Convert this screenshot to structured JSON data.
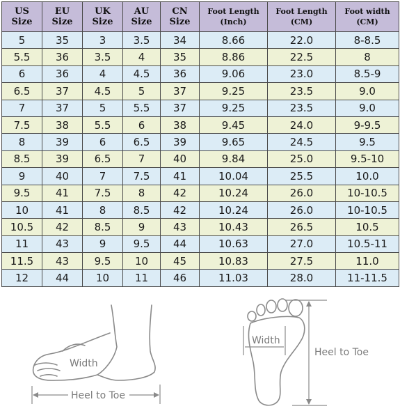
{
  "headers": [
    {
      "line1": "US",
      "line2": "Size"
    },
    {
      "line1": "EU",
      "line2": "Size"
    },
    {
      "line1": "UK",
      "line2": "Size"
    },
    {
      "line1": "AU",
      "line2": "Size"
    },
    {
      "line1": "CN",
      "line2": "Size"
    },
    {
      "line1": "Foot Length",
      "line2": "(Inch)"
    },
    {
      "line1": "Foot Length",
      "line2": "(CM)"
    },
    {
      "line1": "Foot width",
      "line2": "(CM)"
    }
  ],
  "rows": [
    [
      "5",
      "35",
      "3",
      "3.5",
      "34",
      "8.66",
      "22.0",
      "8-8.5"
    ],
    [
      "5.5",
      "36",
      "3.5",
      "4",
      "35",
      "8.86",
      "22.5",
      "8"
    ],
    [
      "6",
      "36",
      "4",
      "4.5",
      "36",
      "9.06",
      "23.0",
      "8.5-9"
    ],
    [
      "6.5",
      "37",
      "4.5",
      "5",
      "37",
      "9.25",
      "23.5",
      "9.0"
    ],
    [
      "7",
      "37",
      "5",
      "5.5",
      "37",
      "9.25",
      "23.5",
      "9.0"
    ],
    [
      "7.5",
      "38",
      "5.5",
      "6",
      "38",
      "9.45",
      "24.0",
      "9-9.5"
    ],
    [
      "8",
      "39",
      "6",
      "6.5",
      "39",
      "9.65",
      "24.5",
      "9.5"
    ],
    [
      "8.5",
      "39",
      "6.5",
      "7",
      "40",
      "9.84",
      "25.0",
      "9.5-10"
    ],
    [
      "9",
      "40",
      "7",
      "7.5",
      "41",
      "10.04",
      "25.5",
      "10.0"
    ],
    [
      "9.5",
      "41",
      "7.5",
      "8",
      "42",
      "10.24",
      "26.0",
      "10-10.5"
    ],
    [
      "10",
      "41",
      "8",
      "8.5",
      "42",
      "10.24",
      "26.0",
      "10-10.5"
    ],
    [
      "10.5",
      "42",
      "8.5",
      "9",
      "43",
      "10.43",
      "26.5",
      "10.5"
    ],
    [
      "11",
      "43",
      "9",
      "9.5",
      "44",
      "10.63",
      "27.0",
      "10.5-11"
    ],
    [
      "11.5",
      "43",
      "9.5",
      "10",
      "45",
      "10.83",
      "27.5",
      "11.0"
    ],
    [
      "12",
      "44",
      "10",
      "11",
      "46",
      "11.03",
      "28.0",
      "11-11.5"
    ]
  ],
  "diagram": {
    "side_view": {
      "width_label": "Width",
      "length_label": "Heel to Toe"
    },
    "sole_view": {
      "width_label": "Width",
      "length_label": "Heel to Toe"
    }
  }
}
